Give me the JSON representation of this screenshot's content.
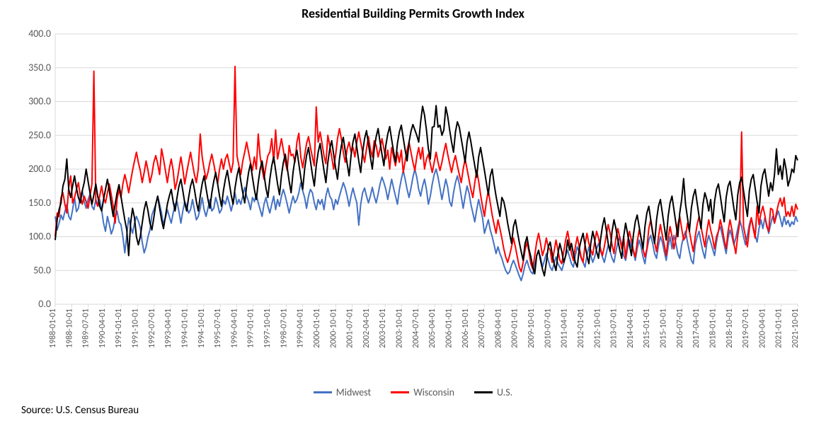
{
  "chart": {
    "type": "line",
    "title": "Residential Building Permits Growth Index",
    "title_fontsize": 18,
    "title_weight": "bold",
    "background_color": "#ffffff",
    "plot_border_color": "#d9d9d9",
    "axis_label_color": "#595959",
    "grid_color": "#d9d9d9",
    "ylim": [
      0,
      400
    ],
    "ytick_step": 50,
    "ytick_decimals": 1,
    "line_width": 2,
    "x_label_fontsize": 12,
    "y_label_fontsize": 14,
    "x_label_rotation_vertical": true,
    "x_tick_labels": [
      "1988-01-01",
      "1988-10-01",
      "1989-07-01",
      "1990-04-01",
      "1991-01-01",
      "1991-10-01",
      "1992-07-01",
      "1993-04-01",
      "1994-01-01",
      "1994-10-01",
      "1995-07-01",
      "1996-04-01",
      "1997-01-01",
      "1997-10-01",
      "1998-07-01",
      "1999-04-01",
      "2000-01-01",
      "2000-10-01",
      "2001-07-01",
      "2002-04-01",
      "2003-01-01",
      "2003-10-01",
      "2004-07-01",
      "2005-04-01",
      "2006-01-01",
      "2006-10-01",
      "2007-07-01",
      "2008-04-01",
      "2009-01-01",
      "2009-10-01",
      "2010-07-01",
      "2011-04-01",
      "2012-01-01",
      "2012-10-01",
      "2013-07-01",
      "2014-04-01",
      "2015-01-01",
      "2015-10-01",
      "2016-07-01",
      "2017-04-01",
      "2018-01-01",
      "2018-10-01",
      "2019-07-01",
      "2020-04-01",
      "2021-01-01",
      "2021-10-01"
    ],
    "series": [
      {
        "name": "Midwest",
        "color": "#4472c4",
        "values": [
          130,
          110,
          120,
          132,
          125,
          137,
          148,
          130,
          125,
          140,
          158,
          137,
          142,
          160,
          168,
          152,
          142,
          155,
          163,
          145,
          140,
          155,
          148,
          155,
          140,
          120,
          108,
          130,
          118,
          104,
          112,
          128,
          138,
          122,
          118,
          100,
          76,
          102,
          128,
          115,
          105,
          120,
          130,
          123,
          113,
          92,
          76,
          85,
          100,
          110,
          132,
          140,
          148,
          160,
          148,
          135,
          118,
          128,
          140,
          130,
          120,
          135,
          148,
          152,
          137,
          120,
          138,
          152,
          145,
          135,
          140,
          155,
          140,
          125,
          130,
          142,
          158,
          140,
          130,
          142,
          155,
          138,
          142,
          158,
          148,
          135,
          140,
          154,
          148,
          160,
          150,
          138,
          150,
          165,
          148,
          155,
          148,
          160,
          173,
          160,
          152,
          140,
          158,
          152,
          163,
          150,
          140,
          130,
          148,
          158,
          145,
          135,
          148,
          160,
          140,
          155,
          145,
          160,
          170,
          160,
          148,
          135,
          148,
          160,
          150,
          155,
          165,
          180,
          168,
          158,
          142,
          160,
          170,
          165,
          150,
          140,
          155,
          148,
          155,
          140,
          160,
          172,
          160,
          155,
          140,
          155,
          148,
          160,
          170,
          180,
          172,
          160,
          145,
          160,
          172,
          160,
          150,
          117,
          148,
          165,
          172,
          160,
          150,
          160,
          173,
          160,
          150,
          163,
          178,
          188,
          180,
          170,
          155,
          170,
          185,
          172,
          160,
          148,
          170,
          185,
          198,
          185,
          170,
          158,
          172,
          188,
          200,
          188,
          170,
          160,
          175,
          185,
          170,
          148,
          160,
          178,
          192,
          200,
          188,
          172,
          155,
          170,
          185,
          173,
          152,
          145,
          165,
          180,
          190,
          178,
          160,
          142,
          160,
          175,
          165,
          148,
          135,
          122,
          140,
          155,
          142,
          128,
          105,
          115,
          125,
          110,
          100,
          88,
          75,
          85,
          75,
          68,
          58,
          50,
          45,
          48,
          58,
          65,
          58,
          50,
          42,
          35,
          45,
          58,
          65,
          55,
          48,
          45,
          58,
          72,
          78,
          70,
          55,
          65,
          75,
          65,
          55,
          50,
          60,
          70,
          60,
          55,
          50,
          60,
          72,
          80,
          70,
          60,
          55,
          72,
          85,
          78,
          68,
          62,
          55,
          72,
          85,
          72,
          62,
          70,
          82,
          90,
          80,
          70,
          62,
          75,
          88,
          78,
          68,
          62,
          78,
          92,
          100,
          88,
          72,
          65,
          82,
          95,
          85,
          78,
          65,
          82,
          95,
          85,
          70,
          60,
          80,
          95,
          102,
          90,
          75,
          68,
          87,
          100,
          92,
          78,
          65,
          85,
          100,
          82,
          102,
          90,
          75,
          68,
          88,
          100,
          108,
          92,
          78,
          65,
          60,
          88,
          100,
          108,
          92,
          78,
          68,
          90,
          102,
          92,
          82,
          72,
          92,
          108,
          115,
          102,
          88,
          75,
          98,
          110,
          100,
          88,
          98,
          112,
          125,
          115,
          100,
          88,
          102,
          118,
          128,
          115,
          102,
          92,
          112,
          125,
          112,
          128,
          118,
          105,
          118,
          130,
          120,
          130,
          138,
          127,
          115,
          130,
          118,
          124,
          115,
          122,
          118,
          130,
          122
        ]
      },
      {
        "name": "Wisconsin",
        "color": "#ff0000",
        "values": [
          100,
          135,
          130,
          158,
          165,
          148,
          135,
          173,
          190,
          150,
          158,
          170,
          180,
          160,
          148,
          160,
          152,
          142,
          160,
          178,
          345,
          152,
          145,
          160,
          175,
          158,
          150,
          165,
          178,
          162,
          145,
          120,
          155,
          170,
          158,
          178,
          192,
          180,
          165,
          182,
          198,
          212,
          225,
          210,
          198,
          180,
          195,
          212,
          198,
          180,
          192,
          210,
          220,
          208,
          192,
          230,
          215,
          198,
          180,
          200,
          215,
          198,
          170,
          182,
          200,
          218,
          200,
          178,
          195,
          210,
          225,
          208,
          192,
          180,
          200,
          252,
          218,
          200,
          185,
          195,
          210,
          222,
          208,
          192,
          178,
          200,
          215,
          200,
          215,
          222,
          208,
          195,
          210,
          352,
          220,
          205,
          192,
          212,
          225,
          240,
          225,
          210,
          198,
          218,
          200,
          252,
          218,
          200,
          185,
          205,
          220,
          225,
          245,
          210,
          258,
          215,
          230,
          245,
          228,
          210,
          198,
          235,
          220,
          222,
          210,
          240,
          253,
          218,
          202,
          220,
          238,
          248,
          232,
          218,
          205,
          292,
          240,
          255,
          238,
          220,
          208,
          250,
          235,
          218,
          200,
          220,
          245,
          260,
          245,
          225,
          210,
          230,
          240,
          225,
          232,
          218,
          240,
          255,
          240,
          225,
          210,
          230,
          248,
          230,
          218,
          242,
          235,
          218,
          230,
          245,
          230,
          215,
          228,
          200,
          232,
          218,
          205,
          225,
          210,
          228,
          195,
          212,
          228,
          240,
          225,
          210,
          198,
          218,
          232,
          215,
          232,
          200,
          215,
          222,
          208,
          195,
          210,
          225,
          210,
          198,
          210,
          225,
          238,
          222,
          208,
          195,
          210,
          220,
          205,
          192,
          180,
          200,
          215,
          200,
          185,
          170,
          158,
          180,
          198,
          182,
          162,
          145,
          130,
          152,
          168,
          150,
          132,
          118,
          105,
          125,
          112,
          98,
          82,
          70,
          62,
          72,
          85,
          98,
          85,
          70,
          55,
          48,
          62,
          80,
          92,
          78,
          60,
          52,
          72,
          92,
          105,
          90,
          72,
          82,
          98,
          85,
          80,
          62,
          78,
          95,
          80,
          65,
          60,
          78,
          95,
          108,
          92,
          75,
          65,
          85,
          100,
          85,
          70,
          62,
          88,
          105,
          90,
          80,
          73,
          92,
          108,
          98,
          82,
          72,
          85,
          102,
          118,
          105,
          88,
          75,
          98,
          112,
          98,
          82,
          100,
          68,
          92,
          108,
          95,
          80,
          70,
          92,
          110,
          98,
          82,
          70,
          82,
          112,
          125,
          108,
          92,
          78,
          100,
          118,
          102,
          88,
          72,
          98,
          115,
          100,
          82,
          98,
          118,
          130,
          112,
          95,
          100,
          120,
          108,
          92,
          78,
          100,
          118,
          130,
          115,
          100,
          85,
          108,
          125,
          110,
          98,
          82,
          100,
          108,
          125,
          112,
          95,
          82,
          108,
          125,
          110,
          90,
          75,
          102,
          120,
          255,
          115,
          100,
          85,
          112,
          128,
          112,
          98,
          145,
          118,
          135,
          145,
          132,
          115,
          108,
          142,
          140,
          120,
          135,
          148,
          157,
          145,
          158,
          130,
          137,
          130,
          145,
          130,
          148,
          140
        ]
      },
      {
        "name": "U.S.",
        "color": "#000000",
        "values": [
          95,
          125,
          140,
          150,
          175,
          185,
          215,
          170,
          158,
          175,
          190,
          172,
          158,
          150,
          168,
          180,
          200,
          182,
          165,
          148,
          162,
          178,
          160,
          145,
          138,
          155,
          170,
          185,
          168,
          148,
          130,
          148,
          165,
          177,
          160,
          142,
          125,
          110,
          72,
          120,
          142,
          128,
          100,
          88,
          100,
          120,
          140,
          152,
          138,
          120,
          110,
          128,
          148,
          160,
          142,
          125,
          112,
          130,
          148,
          160,
          170,
          152,
          138,
          158,
          175,
          185,
          168,
          150,
          138,
          158,
          175,
          185,
          170,
          152,
          138,
          160,
          178,
          190,
          172,
          155,
          142,
          165,
          182,
          195,
          178,
          160,
          145,
          168,
          185,
          198,
          180,
          162,
          148,
          172,
          190,
          202,
          182,
          165,
          150,
          175,
          195,
          208,
          188,
          170,
          155,
          180,
          200,
          212,
          192,
          172,
          158,
          185,
          205,
          218,
          198,
          178,
          162,
          190,
          210,
          222,
          202,
          182,
          165,
          195,
          215,
          228,
          208,
          188,
          170,
          200,
          220,
          232,
          212,
          192,
          175,
          205,
          225,
          238,
          218,
          198,
          180,
          210,
          230,
          242,
          222,
          202,
          185,
          215,
          235,
          247,
          227,
          208,
          190,
          220,
          240,
          252,
          232,
          212,
          195,
          225,
          245,
          257,
          237,
          218,
          200,
          230,
          248,
          260,
          240,
          222,
          205,
          235,
          252,
          263,
          244,
          226,
          210,
          238,
          255,
          265,
          246,
          228,
          212,
          240,
          256,
          266,
          258,
          250,
          240,
          270,
          293,
          280,
          258,
          230,
          215,
          262,
          263,
          294,
          262,
          265,
          250,
          258,
          292,
          278,
          258,
          240,
          225,
          255,
          270,
          262,
          245,
          228,
          210,
          240,
          255,
          240,
          222,
          205,
          188,
          218,
          232,
          215,
          198,
          180,
          162,
          190,
          200,
          178,
          160,
          145,
          130,
          158,
          152,
          138,
          120,
          105,
          90,
          115,
          125,
          108,
          92,
          78,
          65,
          90,
          100,
          82,
          70,
          55,
          45,
          72,
          80,
          65,
          52,
          42,
          62,
          85,
          92,
          75,
          60,
          50,
          75,
          90,
          78,
          62,
          72,
          95,
          80,
          90,
          75,
          62,
          55,
          82,
          95,
          105,
          88,
          72,
          60,
          90,
          108,
          95,
          78,
          68,
          95,
          115,
          128,
          110,
          90,
          78,
          108,
          125,
          112,
          95,
          80,
          68,
          100,
          120,
          105,
          88,
          72,
          102,
          122,
          132,
          115,
          98,
          82,
          115,
          135,
          145,
          125,
          105,
          90,
          125,
          145,
          155,
          135,
          115,
          95,
          130,
          150,
          160,
          140,
          120,
          100,
          135,
          155,
          186,
          148,
          128,
          108,
          142,
          160,
          170,
          150,
          130,
          112,
          148,
          165,
          155,
          138,
          155,
          120,
          152,
          170,
          178,
          160,
          140,
          122,
          158,
          175,
          182,
          162,
          142,
          125,
          162,
          180,
          188,
          168,
          148,
          130,
          168,
          185,
          192,
          172,
          152,
          135,
          175,
          192,
          200,
          180,
          160,
          180,
          168,
          192,
          230,
          192,
          205,
          185,
          215,
          200,
          175,
          185,
          200,
          195,
          220,
          213
        ]
      }
    ],
    "legend_position": "bottom-center"
  },
  "source_text": "Source: U.S. Census Bureau"
}
